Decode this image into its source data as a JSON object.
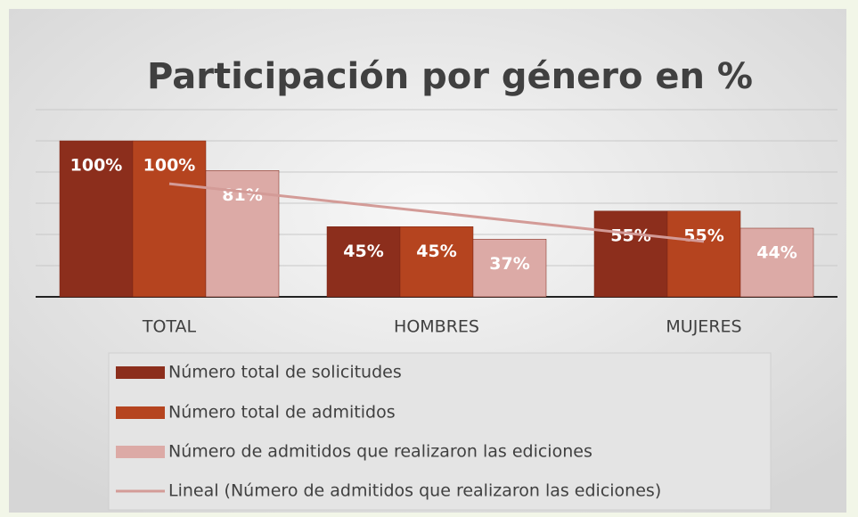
{
  "chart_data": {
    "type": "bar",
    "title": "Participación por género en %",
    "categories": [
      "TOTAL",
      "HOMBRES",
      "MUJERES"
    ],
    "series": [
      {
        "name": "Número total de solicitudes",
        "color": "#8c2e1c",
        "values": [
          100,
          45,
          55
        ],
        "value_labels": [
          "100%",
          "45%",
          "55%"
        ]
      },
      {
        "name": "Número total de admitidos",
        "color": "#b5441f",
        "values": [
          100,
          45,
          55
        ],
        "value_labels": [
          "100%",
          "45%",
          "55%"
        ]
      },
      {
        "name": "Número de admitidos que realizaron las ediciones",
        "color": "#dcaaa6",
        "values": [
          81,
          37,
          44
        ],
        "value_labels": [
          "81%",
          "37%",
          "44%"
        ]
      }
    ],
    "trendline": {
      "name": "Lineal (Número de admitidos que realizaron las ediciones)",
      "series": 2,
      "color": "#d39b97"
    },
    "ylim": [
      0,
      120
    ],
    "yticks": [
      0,
      20,
      40,
      60,
      80,
      100,
      120
    ],
    "grid": true
  }
}
